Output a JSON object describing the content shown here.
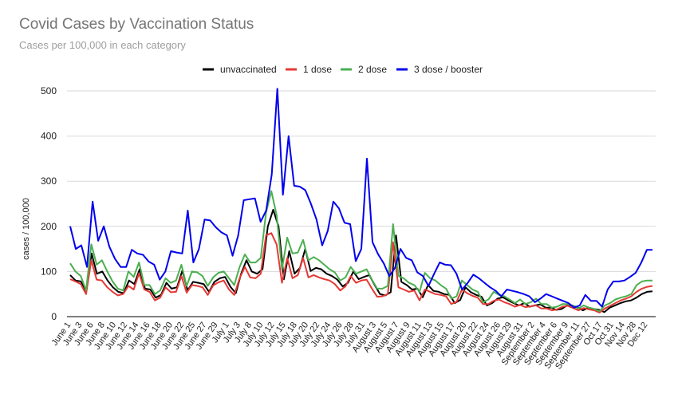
{
  "chart_data": {
    "type": "line",
    "title": "Covid Cases by Vaccination Status",
    "subtitle": "Cases per 100,000 in each category",
    "xlabel": "",
    "ylabel": "cases / 100,000",
    "ylim": [
      0,
      500
    ],
    "yticks": [
      0,
      100,
      200,
      300,
      400,
      500
    ],
    "grid": true,
    "legend_position": "top",
    "xtick_labels": [
      "June 1",
      "June 3",
      "June 6",
      "June 8",
      "June 10",
      "June 12",
      "June 14",
      "June 16",
      "June 18",
      "June 20",
      "June 22",
      "June 25",
      "June 27",
      "June 29",
      "July 1",
      "July 3",
      "July 8",
      "July 10",
      "July 12",
      "July 15",
      "July 18",
      "July 20",
      "July 22",
      "July 24",
      "July 26",
      "July 28",
      "July 31",
      "August 3",
      "August 5",
      "August 7",
      "August 9",
      "August 11",
      "August 13",
      "August 15",
      "August 17",
      "August 20",
      "August 22",
      "August 24",
      "August 26",
      "August 29",
      "August 31",
      "September 2",
      "September 4",
      "September 6",
      "September 9",
      "September 11",
      "September 27",
      "Oct 17",
      "Oct 31",
      "Nov 14",
      "Nov 28",
      "Dec 12"
    ],
    "series": [
      {
        "name": "unvaccinated",
        "color": "#000000",
        "values": [
          92,
          80,
          78,
          55,
          140,
          95,
          100,
          80,
          65,
          55,
          52,
          80,
          72,
          105,
          62,
          60,
          42,
          48,
          75,
          62,
          65,
          102,
          58,
          77,
          75,
          72,
          55,
          77,
          85,
          88,
          66,
          52,
          95,
          125,
          100,
          95,
          105,
          200,
          237,
          200,
          83,
          145,
          95,
          108,
          150,
          101,
          108,
          105,
          95,
          90,
          82,
          67,
          75,
          100,
          83,
          88,
          92,
          70,
          50,
          47,
          54,
          180,
          77,
          70,
          60,
          62,
          43,
          70,
          57,
          55,
          50,
          48,
          30,
          37,
          65,
          54,
          48,
          44,
          25,
          30,
          40,
          43,
          36,
          30,
          25,
          30,
          22,
          25,
          27,
          20,
          20,
          15,
          17,
          25,
          25,
          20,
          14,
          20,
          17,
          15,
          10,
          20,
          25,
          30,
          34,
          36,
          42,
          50,
          55,
          56
        ]
      },
      {
        "name": "1 dose",
        "color": "#e53935",
        "values": [
          83,
          78,
          72,
          50,
          125,
          82,
          80,
          65,
          55,
          47,
          50,
          68,
          60,
          96,
          60,
          55,
          36,
          42,
          65,
          54,
          55,
          90,
          53,
          70,
          68,
          65,
          48,
          69,
          76,
          80,
          60,
          48,
          85,
          110,
          87,
          85,
          95,
          180,
          185,
          160,
          75,
          130,
          85,
          92,
          130,
          87,
          92,
          87,
          83,
          80,
          72,
          58,
          67,
          90,
          75,
          80,
          82,
          62,
          44,
          45,
          50,
          165,
          65,
          60,
          55,
          58,
          36,
          60,
          55,
          50,
          48,
          45,
          28,
          33,
          60,
          52,
          46,
          42,
          28,
          28,
          35,
          38,
          32,
          28,
          22,
          26,
          21,
          23,
          25,
          18,
          18,
          14,
          16,
          22,
          24,
          19,
          14,
          19,
          16,
          14,
          9,
          18,
          24,
          30,
          36,
          40,
          45,
          55,
          62,
          66,
          68
        ]
      },
      {
        "name": "2 dose",
        "color": "#4caf50",
        "values": [
          118,
          100,
          90,
          58,
          160,
          115,
          125,
          100,
          78,
          62,
          58,
          100,
          88,
          120,
          70,
          70,
          50,
          58,
          85,
          75,
          80,
          115,
          68,
          100,
          98,
          90,
          68,
          87,
          97,
          100,
          85,
          70,
          110,
          138,
          120,
          120,
          130,
          230,
          278,
          225,
          105,
          175,
          140,
          142,
          170,
          125,
          132,
          125,
          115,
          105,
          98,
          80,
          87,
          110,
          95,
          100,
          105,
          82,
          62,
          62,
          68,
          205,
          90,
          85,
          75,
          70,
          55,
          97,
          85,
          80,
          70,
          62,
          40,
          45,
          80,
          70,
          60,
          55,
          32,
          38,
          55,
          48,
          45,
          38,
          30,
          38,
          28,
          32,
          40,
          28,
          28,
          20,
          22,
          28,
          28,
          24,
          18,
          25,
          20,
          17,
          12,
          25,
          30,
          38,
          42,
          45,
          50,
          70,
          78,
          80,
          80
        ]
      },
      {
        "name": "3 dose / booster",
        "color": "#0000ee",
        "values": [
          200,
          150,
          158,
          110,
          255,
          168,
          200,
          155,
          128,
          110,
          110,
          148,
          140,
          137,
          122,
          115,
          82,
          100,
          145,
          142,
          140,
          235,
          120,
          150,
          215,
          213,
          198,
          187,
          180,
          135,
          180,
          258,
          260,
          262,
          210,
          235,
          315,
          505,
          270,
          400,
          290,
          288,
          280,
          250,
          215,
          158,
          190,
          255,
          240,
          208,
          205,
          123,
          150,
          350,
          165,
          138,
          118,
          90,
          108,
          150,
          130,
          125,
          98,
          90,
          68,
          95,
          120,
          115,
          114,
          95,
          60,
          75,
          93,
          85,
          75,
          65,
          57,
          45,
          60,
          57,
          54,
          50,
          45,
          32,
          40,
          50,
          45,
          40,
          35,
          30,
          20,
          25,
          48,
          35,
          35,
          22,
          60,
          78,
          78,
          80,
          88,
          97,
          120,
          148,
          148
        ]
      }
    ]
  }
}
